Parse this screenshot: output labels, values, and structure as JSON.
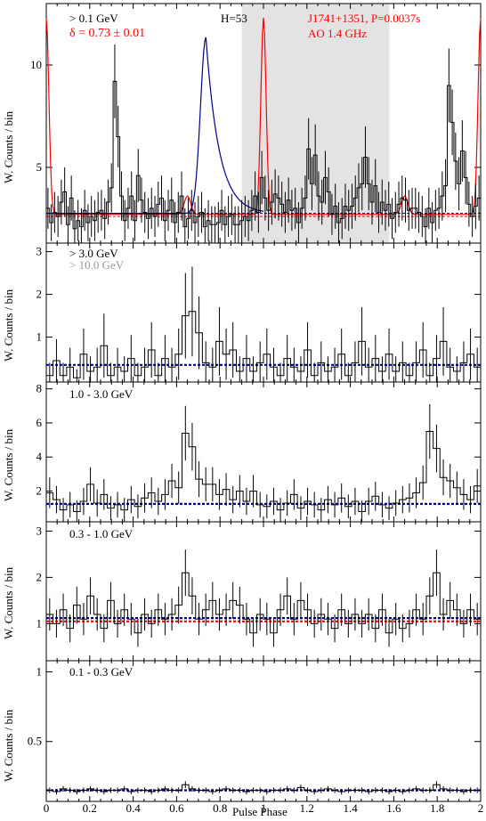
{
  "chart_data": {
    "type": "line",
    "xlabel": "Pulse Phase",
    "x_ticks": [
      "0",
      "0.2",
      "0.4",
      "0.6",
      "0.8",
      "1",
      "1.2",
      "1.4",
      "1.6",
      "1.8",
      "2"
    ],
    "xlim": [
      0,
      2
    ],
    "colors": {
      "histogram": "#000000",
      "radio": "#ff0000",
      "fit": "#00008b",
      "off_pulse": "#e3e3e3",
      "high_energy": "#999999"
    },
    "panels": [
      {
        "energy_label": "> 0.1 GeV",
        "ylabel": "W. Counts / bin",
        "ylim": [
          1.3,
          13.0
        ],
        "yticks": [
          "5",
          "10"
        ],
        "annotations": {
          "delta": "δ = 0.73 ± 0.01",
          "htest": "H=53",
          "pulsar": "J1741+1351, P=0.0037s",
          "radio_obs": "AO 1.4 GHz"
        },
        "off_pulse_range": [
          0.9,
          1.58
        ],
        "background_levels": [
          2.75,
          2.6
        ],
        "values": [
          3.0,
          2.3,
          2.8,
          2.6,
          3.3,
          3.8,
          2.2,
          3.5,
          2.0,
          2.4,
          2.1,
          2.9,
          2.3,
          2.6,
          2.4,
          2.8,
          2.9,
          2.5,
          3.3,
          4.0,
          9.2,
          6.5,
          3.6,
          2.4,
          3.0,
          3.6,
          2.4,
          4.6,
          3.4,
          2.8,
          2.5,
          3.0,
          2.6,
          3.2,
          3.5,
          2.4,
          2.9,
          3.4,
          2.3,
          2.8,
          3.6,
          2.1,
          2.5,
          2.9,
          2.3,
          2.6,
          2.8,
          2.1,
          2.4,
          2.2,
          2.2,
          2.3,
          2.9,
          2.2,
          2.6,
          2.7,
          2.2,
          2.2,
          2.4,
          2.6,
          2.4,
          2.9,
          3.6,
          2.8,
          4.5,
          3.5,
          2.9,
          3.3,
          3.7,
          3.5,
          3.2,
          2.8,
          3.4,
          2.9,
          3.0,
          2.3,
          3.0,
          3.5,
          5.9,
          4.2,
          5.6,
          3.6,
          3.3,
          4.5,
          3.8,
          2.7,
          3.1,
          2.3,
          2.5,
          3.1,
          2.9,
          3.1,
          3.5,
          4.0,
          4.2,
          5.5,
          4.2,
          3.3,
          4.1,
          2.8,
          3.3,
          2.9,
          3.2,
          2.5,
          2.8,
          3.2,
          3.5,
          3.4,
          2.9,
          3.0,
          3.0,
          2.8,
          2.6,
          2.1,
          3.0,
          2.3,
          2.9,
          3.0,
          3.6,
          4.1,
          9.0,
          7.2,
          5.3,
          4.2,
          5.8,
          4.5,
          3.2,
          2.6,
          3.1,
          3.5
        ],
        "errors": [
          1.0,
          0.9,
          1.0,
          1.0,
          1.1,
          1.2,
          0.9,
          1.1,
          0.9,
          1.0,
          0.9,
          1.0,
          0.9,
          1.0,
          1.0,
          1.0,
          1.0,
          1.0,
          1.1,
          1.2,
          1.8,
          1.5,
          1.2,
          1.0,
          1.0,
          1.2,
          1.0,
          1.3,
          1.1,
          1.0,
          1.0,
          1.0,
          1.0,
          1.1,
          1.1,
          1.0,
          1.0,
          1.1,
          1.0,
          1.0,
          1.2,
          0.9,
          1.0,
          1.0,
          1.0,
          1.0,
          1.0,
          0.9,
          1.0,
          0.9,
          0.9,
          1.0,
          1.0,
          0.9,
          1.0,
          1.0,
          0.9,
          0.9,
          1.0,
          1.0,
          1.0,
          1.0,
          1.2,
          1.0,
          1.3,
          1.1,
          1.0,
          1.1,
          1.2,
          1.1,
          1.1,
          1.0,
          1.1,
          1.0,
          1.0,
          1.0,
          1.0,
          1.1,
          1.5,
          1.3,
          1.5,
          1.2,
          1.1,
          1.3,
          1.2,
          1.0,
          1.1,
          1.0,
          1.0,
          1.1,
          1.0,
          1.1,
          1.1,
          1.2,
          1.3,
          1.5,
          1.3,
          1.1,
          1.3,
          1.0,
          1.1,
          1.0,
          1.1,
          1.0,
          1.0,
          1.1,
          1.1,
          1.1,
          1.0,
          1.0,
          1.0,
          1.0,
          1.0,
          0.9,
          1.0,
          1.0,
          1.0,
          1.0,
          1.2,
          1.3,
          1.8,
          1.6,
          1.4,
          1.3,
          1.5,
          1.3,
          1.1,
          1.0,
          1.1,
          1.1
        ]
      },
      {
        "energy_label": "> 3.0 GeV",
        "energy_label_2": "> 10.0 GeV",
        "ylabel": "W. Counts / bin",
        "ylim": [
          -0.05,
          3.2
        ],
        "yticks": [
          "1",
          "2",
          "3"
        ],
        "background_levels": [
          0.35
        ],
        "values": [
          0.1,
          0.45,
          0.1,
          0.3,
          0.05,
          0.6,
          0.2,
          0.3,
          0.8,
          0.1,
          0.3,
          0.2,
          0.5,
          0.1,
          0.3,
          0.7,
          0.1,
          0.5,
          0.3,
          0.6,
          1.5,
          1.6,
          1.1,
          0.4,
          0.3,
          0.9,
          0.6,
          0.7,
          0.2,
          0.5,
          0.2,
          0.4,
          0.6,
          0.3,
          0.1,
          0.5,
          0.3,
          0.2,
          0.7,
          0.1,
          0.4,
          0.2,
          0.3,
          0.6,
          0.1,
          0.4,
          0.9,
          0.3,
          0.5,
          0.2,
          0.6,
          0.2,
          0.4,
          0.1,
          0.4,
          0.7,
          0.1,
          0.5,
          0.9,
          0.3,
          0.2,
          0.4,
          0.6,
          0.3
        ],
        "errors": [
          0.3,
          0.5,
          0.3,
          0.45,
          0.2,
          0.6,
          0.35,
          0.45,
          0.75,
          0.3,
          0.45,
          0.35,
          0.55,
          0.3,
          0.45,
          0.65,
          0.3,
          0.55,
          0.45,
          0.6,
          1.0,
          1.05,
          0.85,
          0.5,
          0.45,
          0.8,
          0.6,
          0.65,
          0.35,
          0.55,
          0.35,
          0.5,
          0.6,
          0.45,
          0.3,
          0.55,
          0.45,
          0.35,
          0.65,
          0.3,
          0.5,
          0.35,
          0.45,
          0.6,
          0.3,
          0.5,
          0.8,
          0.45,
          0.55,
          0.35,
          0.6,
          0.35,
          0.5,
          0.3,
          0.5,
          0.65,
          0.3,
          0.55,
          0.8,
          0.45,
          0.35,
          0.5,
          0.6,
          0.45
        ]
      },
      {
        "energy_label": "1.0 - 3.0 GeV",
        "ylabel": "W. Counts / bin",
        "ylim": [
          0.2,
          8.4
        ],
        "yticks": [
          "2",
          "4",
          "6",
          "8"
        ],
        "background_levels": [
          1.25
        ],
        "values": [
          1.9,
          1.5,
          0.9,
          1.2,
          0.8,
          1.4,
          2.4,
          1.3,
          1.8,
          1.0,
          1.2,
          0.9,
          1.5,
          1.1,
          1.6,
          1.9,
          1.4,
          1.8,
          2.6,
          2.2,
          5.4,
          4.6,
          2.7,
          2.4,
          2.4,
          1.8,
          2.1,
          1.5,
          2.0,
          1.4,
          2.0,
          1.2,
          1.1,
          1.4,
          0.9,
          1.3,
          1.8,
          1.0,
          1.4,
          1.2,
          0.9,
          1.5,
          1.2,
          1.6,
          1.1,
          1.4,
          0.8,
          1.4,
          1.7,
          1.2,
          1.0,
          1.3,
          1.5,
          1.6,
          1.9,
          2.5,
          5.5,
          4.5,
          2.8,
          2.6,
          2.2,
          1.8,
          1.5,
          2.3
        ],
        "errors": [
          0.9,
          0.8,
          0.7,
          0.75,
          0.65,
          0.8,
          1.0,
          0.8,
          0.9,
          0.7,
          0.75,
          0.7,
          0.8,
          0.7,
          0.85,
          0.9,
          0.8,
          0.9,
          1.0,
          0.95,
          1.6,
          1.4,
          1.05,
          1.0,
          1.0,
          0.9,
          0.95,
          0.8,
          0.95,
          0.8,
          0.95,
          0.75,
          0.7,
          0.8,
          0.7,
          0.75,
          0.9,
          0.7,
          0.8,
          0.75,
          0.7,
          0.8,
          0.75,
          0.85,
          0.7,
          0.8,
          0.65,
          0.8,
          0.85,
          0.75,
          0.7,
          0.75,
          0.8,
          0.85,
          0.9,
          1.0,
          1.6,
          1.4,
          1.05,
          1.0,
          0.95,
          0.9,
          0.8,
          1.0
        ]
      },
      {
        "energy_label": "0.3 - 1.0 GeV",
        "ylabel": "W. Counts / bin",
        "ylim": [
          0.2,
          3.2
        ],
        "yticks": [
          "1",
          "2",
          "3"
        ],
        "background_levels": [
          1.12,
          1.05
        ],
        "values": [
          1.2,
          1.0,
          1.3,
          0.9,
          1.4,
          1.1,
          1.6,
          1.2,
          0.9,
          1.5,
          1.0,
          1.3,
          1.1,
          0.8,
          1.2,
          1.0,
          1.3,
          1.1,
          1.2,
          1.4,
          2.1,
          1.6,
          1.1,
          1.3,
          1.5,
          1.2,
          1.3,
          1.5,
          1.4,
          1.1,
          0.8,
          1.2,
          1.1,
          0.8,
          1.3,
          1.6,
          1.1,
          1.5,
          1.3,
          1.0,
          1.2,
          1.1,
          0.9,
          1.3,
          1.0,
          1.2,
          1.0,
          1.2,
          0.9,
          1.3,
          0.8,
          1.1,
          0.9,
          1.0,
          1.3,
          1.1,
          1.6,
          2.1,
          1.2,
          1.5,
          1.3,
          1.0,
          1.3,
          1.1
        ],
        "errors": [
          0.35,
          0.3,
          0.35,
          0.3,
          0.4,
          0.35,
          0.4,
          0.35,
          0.3,
          0.4,
          0.3,
          0.35,
          0.35,
          0.3,
          0.35,
          0.3,
          0.35,
          0.35,
          0.35,
          0.4,
          0.5,
          0.4,
          0.35,
          0.35,
          0.4,
          0.35,
          0.35,
          0.4,
          0.4,
          0.35,
          0.3,
          0.35,
          0.35,
          0.3,
          0.35,
          0.4,
          0.35,
          0.4,
          0.35,
          0.3,
          0.35,
          0.35,
          0.3,
          0.35,
          0.3,
          0.35,
          0.3,
          0.35,
          0.3,
          0.35,
          0.3,
          0.35,
          0.3,
          0.3,
          0.35,
          0.35,
          0.4,
          0.5,
          0.35,
          0.4,
          0.35,
          0.3,
          0.35,
          0.35
        ]
      },
      {
        "energy_label": "0.1 - 0.3 GeV",
        "ylabel": "W. Counts / bin",
        "ylim": [
          0.07,
          1.08
        ],
        "yticks": [
          "0.5",
          "1"
        ],
        "background_levels": [
          0.15
        ],
        "values": [
          0.15,
          0.14,
          0.16,
          0.15,
          0.14,
          0.15,
          0.16,
          0.15,
          0.14,
          0.15,
          0.15,
          0.16,
          0.14,
          0.15,
          0.15,
          0.14,
          0.15,
          0.16,
          0.15,
          0.15,
          0.19,
          0.16,
          0.15,
          0.15,
          0.14,
          0.15,
          0.16,
          0.15,
          0.15,
          0.14,
          0.15,
          0.15,
          0.14,
          0.15,
          0.15,
          0.16,
          0.15,
          0.17,
          0.15,
          0.14,
          0.15,
          0.16,
          0.15,
          0.14,
          0.15,
          0.15,
          0.15,
          0.14,
          0.15,
          0.15,
          0.14,
          0.15,
          0.14,
          0.15,
          0.16,
          0.15,
          0.15,
          0.19,
          0.16,
          0.15,
          0.15,
          0.14,
          0.15,
          0.15
        ],
        "errors": [
          0.02,
          0.02,
          0.02,
          0.02,
          0.02,
          0.02,
          0.02,
          0.02,
          0.02,
          0.02,
          0.02,
          0.02,
          0.02,
          0.02,
          0.02,
          0.02,
          0.02,
          0.02,
          0.02,
          0.02,
          0.025,
          0.02,
          0.02,
          0.02,
          0.02,
          0.02,
          0.02,
          0.02,
          0.02,
          0.02,
          0.02,
          0.02,
          0.02,
          0.02,
          0.02,
          0.02,
          0.02,
          0.02,
          0.02,
          0.02,
          0.02,
          0.02,
          0.02,
          0.02,
          0.02,
          0.02,
          0.02,
          0.02,
          0.02,
          0.02,
          0.02,
          0.02,
          0.02,
          0.02,
          0.02,
          0.02,
          0.02,
          0.025,
          0.02,
          0.02,
          0.02,
          0.02,
          0.02,
          0.02
        ]
      }
    ]
  }
}
